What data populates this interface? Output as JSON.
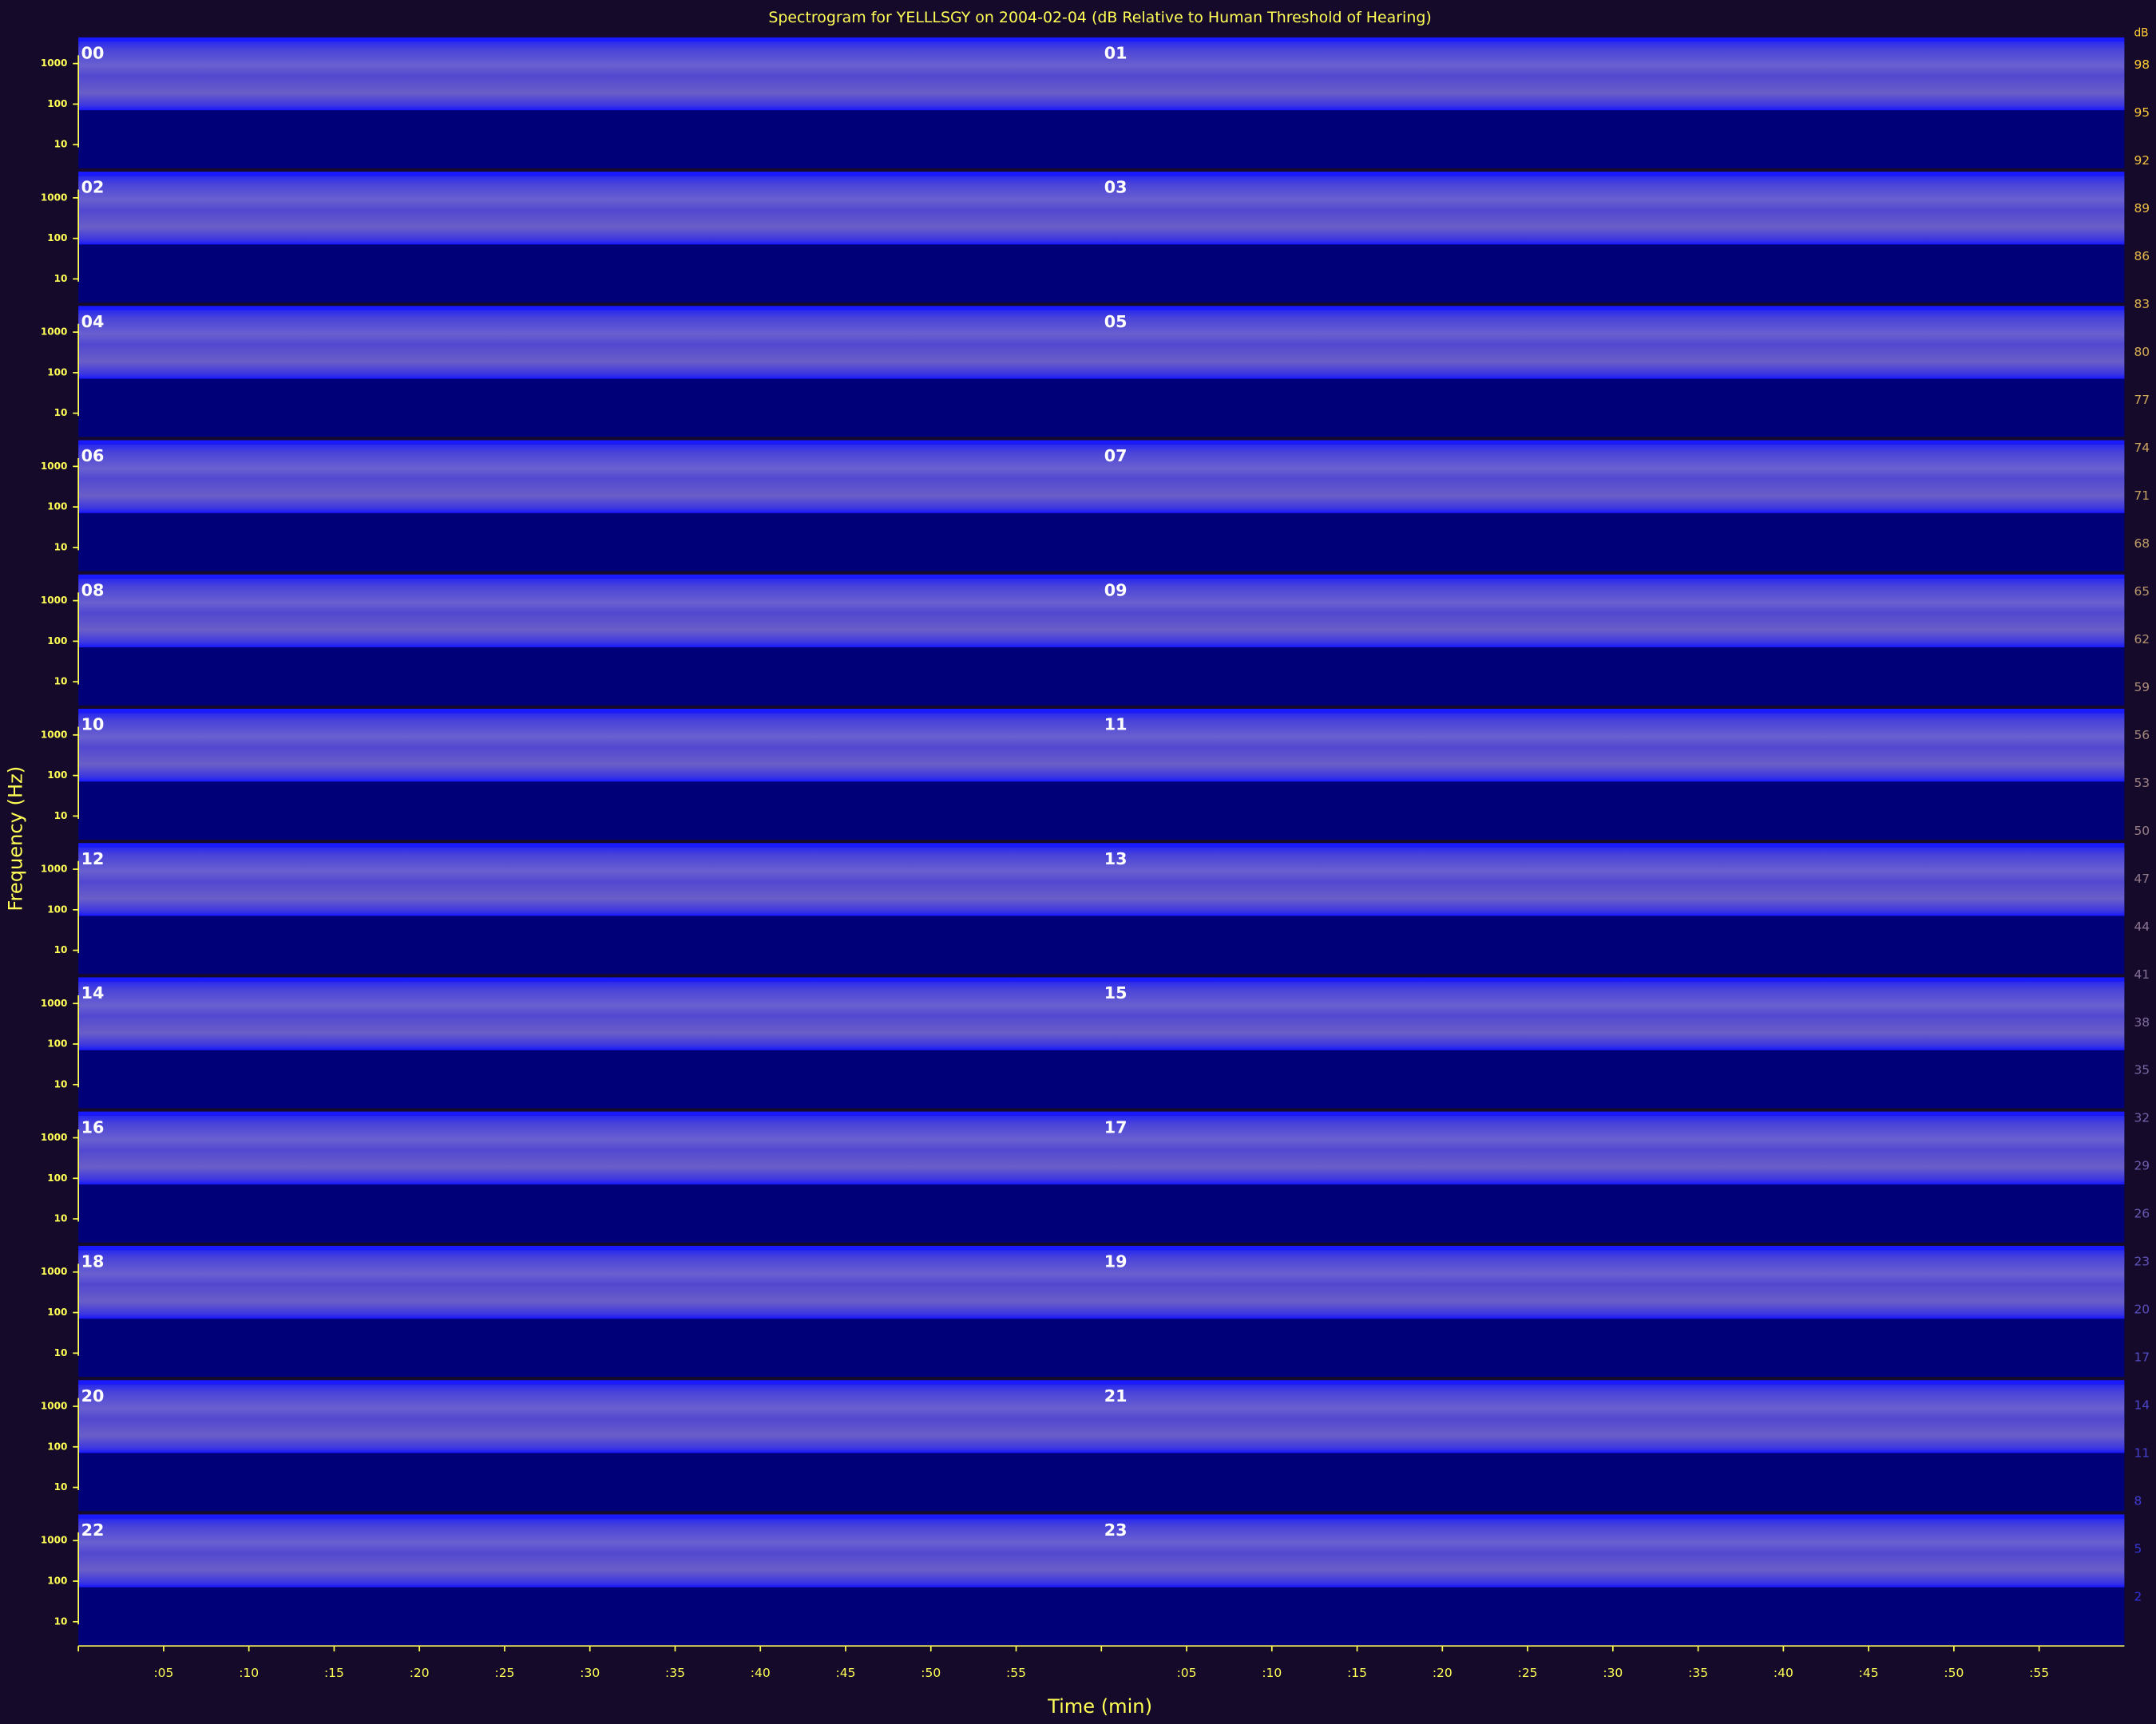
{
  "chart_data": {
    "type": "spectrogram",
    "title": "Spectrogram for YELLLSGY on 2004-02-04 (dB Relative to Human Threshold of Hearing)",
    "xlabel": "Time (min)",
    "ylabel": "Frequency (Hz)",
    "panels": [
      "00",
      "01",
      "02",
      "03",
      "04",
      "05",
      "06",
      "07",
      "08",
      "09",
      "10",
      "11",
      "12",
      "13",
      "14",
      "15",
      "16",
      "17",
      "18",
      "19",
      "20",
      "21",
      "22",
      "23"
    ],
    "xlim": [
      0,
      60
    ],
    "xticks": [
      {
        "value": 5,
        "label": ":05"
      },
      {
        "value": 10,
        "label": ":10"
      },
      {
        "value": 15,
        "label": ":15"
      },
      {
        "value": 20,
        "label": ":20"
      },
      {
        "value": 25,
        "label": ":25"
      },
      {
        "value": 30,
        "label": ":30"
      },
      {
        "value": 35,
        "label": ":35"
      },
      {
        "value": 40,
        "label": ":40"
      },
      {
        "value": 45,
        "label": ":45"
      },
      {
        "value": 50,
        "label": ":50"
      },
      {
        "value": 55,
        "label": ":55"
      }
    ],
    "ylim": [
      2.6,
      3500
    ],
    "yticks": [
      1000,
      100,
      10
    ],
    "ylog": true,
    "colorbar": {
      "label": "dB",
      "ticks": [
        98,
        95,
        92,
        89,
        86,
        83,
        80,
        77,
        74,
        71,
        68,
        65,
        62,
        59,
        56,
        53,
        50,
        47,
        44,
        41,
        38,
        35,
        32,
        29,
        26,
        23,
        20,
        17,
        14,
        11,
        8,
        5,
        2
      ]
    }
  }
}
